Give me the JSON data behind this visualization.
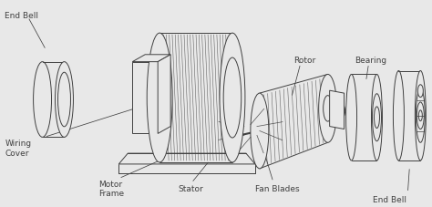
{
  "bg_color": "#e8e8e8",
  "line_color": "#404040",
  "figsize": [
    4.74,
    2.27
  ],
  "dpi": 100,
  "font_size": 6.5,
  "labels": {
    "end_bell_left": "End Bell",
    "wiring_cover": "Wiring\nCover",
    "motor_frame": "Motor\nFrame",
    "stator": "Stator",
    "rotor": "Rotor",
    "fan_blades": "Fan Blades",
    "bearing": "Bearing",
    "end_bell_right": "End Bell"
  }
}
